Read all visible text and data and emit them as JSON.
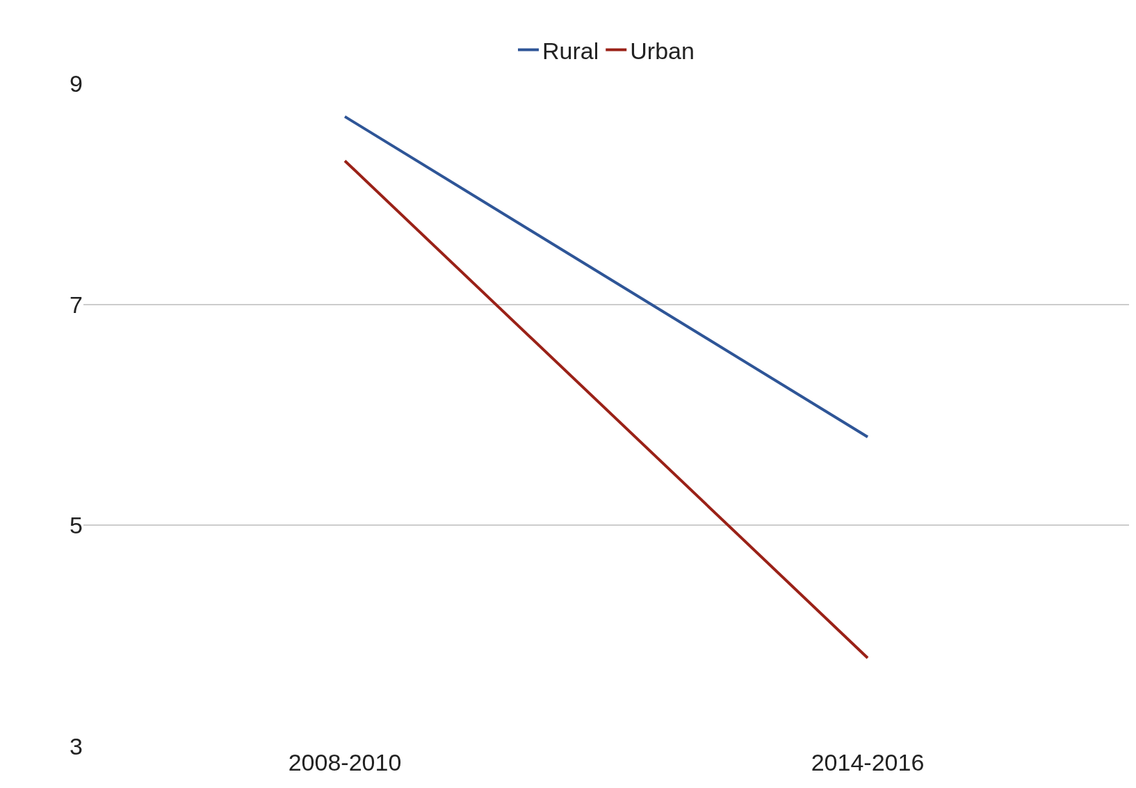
{
  "chart_data": {
    "type": "line",
    "categories": [
      "2008-2010",
      "2014-2016"
    ],
    "series": [
      {
        "name": "Rural",
        "color": "#2e5597",
        "values": [
          8.7,
          5.8
        ]
      },
      {
        "name": "Urban",
        "color": "#9a2117",
        "values": [
          8.3,
          3.8
        ]
      }
    ],
    "ylim": [
      3,
      9
    ],
    "yticks": [
      3,
      5,
      7,
      9
    ],
    "grid": "y",
    "legend": "top",
    "marker": "none",
    "line_style": "solid"
  }
}
